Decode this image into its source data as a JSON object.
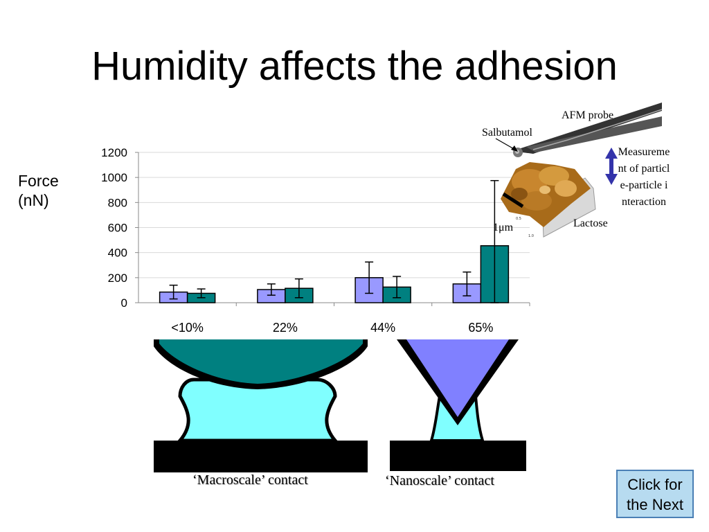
{
  "title": "Humidity affects the adhesion",
  "y_axis_label": [
    "Force",
    "(nN)"
  ],
  "chart_data": {
    "type": "bar",
    "title": "",
    "xlabel": "",
    "ylabel": "Force (nN)",
    "categories": [
      "<10%",
      "22%",
      "44%",
      "65%"
    ],
    "series": [
      {
        "name": "",
        "color": "#9999ff",
        "values": [
          85,
          105,
          200,
          150
        ],
        "error": [
          55,
          45,
          125,
          95
        ]
      },
      {
        "name": "",
        "color": "#008080",
        "values": [
          75,
          115,
          125,
          455
        ],
        "error": [
          35,
          75,
          85,
          520
        ]
      }
    ],
    "ylim": [
      0,
      1200
    ],
    "yticks": [
      0,
      200,
      400,
      600,
      800,
      1000,
      1200
    ],
    "grid": true
  },
  "annotations": {
    "afm_probe": "AFM probe",
    "salbutamol": "Salbutamol",
    "scale_bar": "1μm",
    "lactose": "Lactose",
    "measurement": "Measurement of particle-particle interaction"
  },
  "captions": {
    "macroscale": "‘Macroscale’ contact",
    "nanoscale": "‘Nanoscale’ contact"
  },
  "next_button": {
    "line1": "Click for",
    "line2": "the Next"
  },
  "colors": {
    "macro_sphere": "#008080",
    "meniscus": "#80ffff",
    "nano_tip": "#8080ff",
    "arrow": "#3333aa"
  }
}
